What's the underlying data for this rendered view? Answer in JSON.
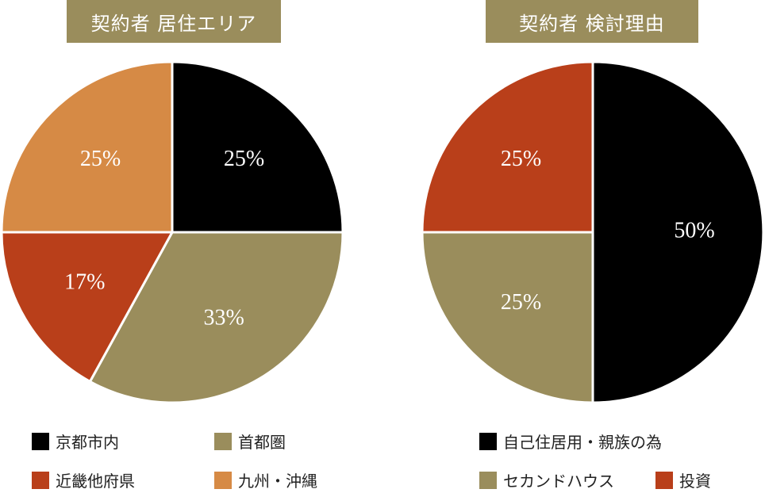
{
  "colors": {
    "black": "#000000",
    "olive": "#9a8d5c",
    "rust": "#b93f1a",
    "orange": "#d68a45",
    "title_bg": "#9a8d5c"
  },
  "chart_data": [
    {
      "type": "pie",
      "title": "契約者 居住エリア",
      "slices": [
        {
          "label": "京都市内",
          "value": 25,
          "display": "25%",
          "color": "#000000"
        },
        {
          "label": "首都圏",
          "value": 33,
          "display": "33%",
          "color": "#9a8d5c"
        },
        {
          "label": "近畿他府県",
          "value": 17,
          "display": "17%",
          "color": "#b93f1a"
        },
        {
          "label": "九州・沖縄",
          "value": 25,
          "display": "25%",
          "color": "#d68a45"
        }
      ]
    },
    {
      "type": "pie",
      "title": "契約者 検討理由",
      "slices": [
        {
          "label": "自己住居用・親族の為",
          "value": 50,
          "display": "50%",
          "color": "#000000"
        },
        {
          "label": "セカンドハウス",
          "value": 25,
          "display": "25%",
          "color": "#9a8d5c"
        },
        {
          "label": "投資",
          "value": 25,
          "display": "25%",
          "color": "#b93f1a"
        }
      ]
    }
  ]
}
